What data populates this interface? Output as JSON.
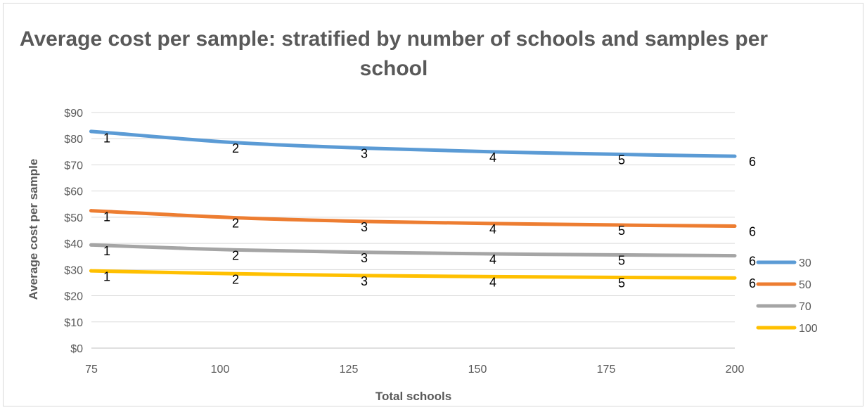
{
  "chart_data": {
    "type": "line",
    "title_lines": [
      "Average cost per sample: stratified by number of schools and samples per",
      "school"
    ],
    "xlabel": "Total schools",
    "ylabel": "Average cost per sample",
    "x_ticks": [
      "75",
      "100",
      "125",
      "150",
      "175",
      "200"
    ],
    "y_ticks": [
      "$0",
      "$10",
      "$20",
      "$30",
      "$40",
      "$50",
      "$60",
      "$70",
      "$80",
      "$90"
    ],
    "xlim": [
      75,
      200
    ],
    "ylim": [
      0,
      90
    ],
    "grid": true,
    "legend_position": "right",
    "x": [
      78,
      103,
      128,
      153,
      178,
      200
    ],
    "series": [
      {
        "name": "30",
        "color": "#5b9bd5",
        "values": [
          82.3,
          78.5,
          76.4,
          75.0,
          74.0,
          73.3
        ],
        "point_labels": [
          "1",
          "2",
          "3",
          "4",
          "5",
          "6"
        ]
      },
      {
        "name": "50",
        "color": "#ed7d31",
        "values": [
          52.2,
          49.8,
          48.4,
          47.6,
          47.0,
          46.6
        ],
        "point_labels": [
          "1",
          "2",
          "3",
          "4",
          "5",
          "6"
        ]
      },
      {
        "name": "70",
        "color": "#a5a5a5",
        "values": [
          39.2,
          37.5,
          36.6,
          36.0,
          35.6,
          35.3
        ],
        "point_labels": [
          "1",
          "2",
          "3",
          "4",
          "5",
          "6"
        ]
      },
      {
        "name": "100",
        "color": "#ffc000",
        "values": [
          29.4,
          28.4,
          27.7,
          27.3,
          27.0,
          26.8
        ],
        "point_labels": [
          "1",
          "2",
          "3",
          "4",
          "5",
          "6"
        ]
      }
    ]
  }
}
